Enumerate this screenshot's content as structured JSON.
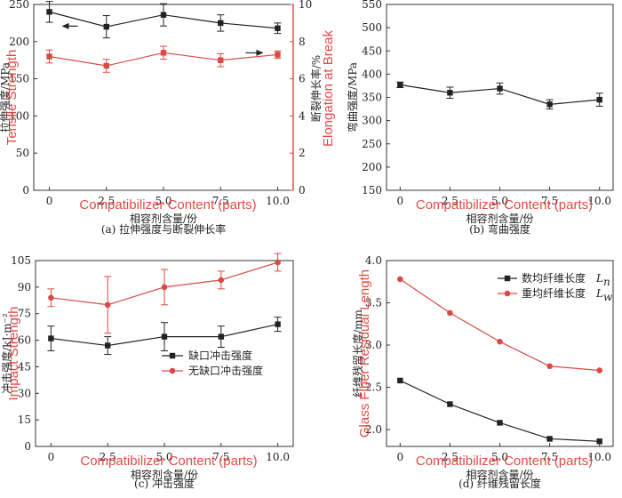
{
  "colors": {
    "black_series": "#222222",
    "red_series": "#d94a45",
    "red_axis": "#e04040",
    "overlay_red": "#e23a36"
  },
  "chart_data": [
    {
      "id": "a",
      "type": "line",
      "caption": "(a) 拉伸强度与断裂伸长率",
      "x": [
        "0",
        "2.5",
        "5.0",
        "7.5",
        "10.0"
      ],
      "x_values": [
        0,
        2.5,
        5,
        7.5,
        10
      ],
      "xlabel": "相容剂含量/份",
      "xlabel_en": "Compatibilizer Content (parts)",
      "ylabel": "拉伸强度/MPa",
      "ylabel_en": "Tensile Strength",
      "ylim": [
        0,
        250
      ],
      "yticks": [
        0,
        50,
        100,
        150,
        200,
        250
      ],
      "y2label": "断裂伸长率/%",
      "y2label_en": "Elongation at Break",
      "y2lim": [
        0,
        10
      ],
      "y2ticks": [
        0,
        2,
        4,
        6,
        8,
        10
      ],
      "series": [
        {
          "axis": "left",
          "color": "black",
          "marker": "square",
          "values": [
            240,
            220,
            236,
            225,
            218
          ],
          "errors": [
            14,
            15,
            15,
            11,
            7
          ]
        },
        {
          "axis": "right",
          "color": "red",
          "marker": "square",
          "values": [
            7.2,
            6.7,
            7.4,
            7.0,
            7.3
          ],
          "errors": [
            0.35,
            0.35,
            0.35,
            0.35,
            0.2
          ]
        }
      ],
      "arrows": [
        {
          "series": 0,
          "direction": "left"
        },
        {
          "series": 1,
          "direction": "right"
        }
      ],
      "grid": false
    },
    {
      "id": "b",
      "type": "line",
      "caption": "(b) 弯曲强度",
      "x": [
        "0",
        "2.5",
        "5.0",
        "7.5",
        "10.0"
      ],
      "x_values": [
        0,
        2.5,
        5,
        7.5,
        10
      ],
      "xlabel": "相容剂含量/份",
      "xlabel_en": "Compatibilizer Content (parts)",
      "ylabel": "弯曲强度/MPa",
      "ylim": [
        150,
        550
      ],
      "yticks": [
        150,
        200,
        250,
        300,
        350,
        400,
        450,
        500,
        550
      ],
      "series": [
        {
          "color": "black",
          "marker": "square",
          "values": [
            377,
            360,
            369,
            335,
            345
          ],
          "errors": [
            6,
            12,
            12,
            10,
            14
          ]
        }
      ],
      "grid": false
    },
    {
      "id": "c",
      "type": "line",
      "caption": "(c) 冲击强度",
      "x": [
        "0",
        "2.5",
        "5.0",
        "7.5",
        "10.0"
      ],
      "x_values": [
        0,
        2.5,
        5,
        7.5,
        10
      ],
      "xlabel": "相容剂含量/份",
      "xlabel_en": "Compatibilizer Content (parts)",
      "ylabel": "冲击强度/kJ·m⁻²",
      "ylabel_en": "Impact Strength",
      "ylim": [
        0,
        105
      ],
      "yticks": [
        0,
        15,
        30,
        45,
        60,
        75,
        90,
        105
      ],
      "series": [
        {
          "name": "缺口冲击强度",
          "color": "black",
          "marker": "square",
          "values": [
            61,
            57,
            62,
            62,
            69
          ],
          "errors": [
            7,
            5,
            8,
            6,
            4
          ]
        },
        {
          "name": "无缺口冲击强度",
          "color": "red",
          "marker": "circle",
          "values": [
            84,
            80,
            90,
            94,
            104
          ],
          "errors": [
            5,
            16,
            10,
            5,
            5
          ]
        }
      ],
      "legend": "center-right",
      "grid": false
    },
    {
      "id": "d",
      "type": "line",
      "caption": "(d) 纤维残留长度",
      "x": [
        "0",
        "2.5",
        "5.0",
        "7.5",
        "10.0"
      ],
      "x_values": [
        0,
        2.5,
        5,
        7.5,
        10
      ],
      "xlabel": "相容剂含量/份",
      "xlabel_en": "Compatibilizer Content (parts)",
      "ylabel": "纤维残留长度/mm",
      "ylabel_en": "Glass Fiber Residual Length",
      "ylim": [
        1.8,
        4.0
      ],
      "yticks": [
        2.0,
        2.5,
        3.0,
        3.5,
        4.0
      ],
      "series": [
        {
          "name": "数均纤维长度",
          "name_sub": "n",
          "color": "black",
          "marker": "square",
          "values": [
            2.58,
            2.3,
            2.08,
            1.89,
            1.86
          ]
        },
        {
          "name": "重均纤维长度",
          "name_sub": "w",
          "color": "red",
          "marker": "circle",
          "values": [
            3.78,
            3.38,
            3.04,
            2.75,
            2.7
          ]
        }
      ],
      "legend_prefix": "L",
      "legend": "top-right",
      "grid": false
    }
  ]
}
